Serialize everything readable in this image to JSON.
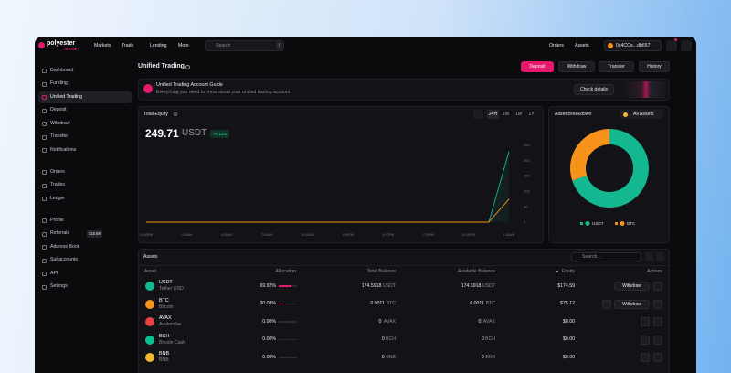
{
  "nav": {
    "brand": "polyester",
    "badge": "TESTNET",
    "links": [
      "Markets",
      "Trade",
      "Lending",
      "More"
    ],
    "search": "Search",
    "shortcut": "/",
    "right": [
      "Orders",
      "Assets"
    ],
    "wallet": "0x4CCe...db657"
  },
  "sidebar": {
    "groups": [
      [
        "Dashboard",
        "Funding",
        "Unified Trading",
        "Deposit",
        "Withdraw",
        "Transfer",
        "Notifications"
      ],
      [
        "Orders",
        "Trades",
        "Ledger"
      ],
      [
        "Profile",
        "Referrals",
        "Address Book",
        "Subaccounts",
        "API",
        "Settings"
      ]
    ],
    "referral_badge": "$15.6K"
  },
  "header": {
    "title": "Unified Trading",
    "buttons": [
      "Deposit",
      "Withdraw",
      "Transfer",
      "History"
    ]
  },
  "banner": {
    "title": "Unified Trading Account Guide",
    "text": "Everything you need to know about your unified trading account",
    "button": "Check details"
  },
  "equity": {
    "title": "Total Equity",
    "value": "249.71",
    "unit": "USDT",
    "change": "+0.11%",
    "ranges": [
      "24H",
      "1W",
      "1M",
      "1Y"
    ],
    "chart": {
      "type": "line",
      "categories": [
        "10:00PM",
        null,
        "1:00AM",
        null,
        "4:00AM",
        null,
        "7:00AM",
        null,
        "10:00AM",
        null,
        "1:00PM",
        null,
        "4:00PM",
        null,
        "7:00PM",
        null,
        "10:00PM",
        null,
        "1:00AM"
      ],
      "series": [
        {
          "color": "#14b890",
          "values": [
            0,
            0,
            0,
            0,
            0,
            0,
            0,
            0,
            0,
            0,
            0,
            0,
            0,
            0,
            0,
            0,
            0,
            0,
            230
          ]
        },
        {
          "color": "#f7931a",
          "values": [
            0,
            0,
            0,
            0,
            0,
            0,
            0,
            0,
            0,
            0,
            0,
            0,
            0,
            0,
            0,
            0,
            0,
            0,
            75
          ]
        }
      ],
      "ylim": [
        0,
        250
      ],
      "yticks": [
        0,
        50,
        100,
        150,
        200,
        250
      ],
      "grid": false
    }
  },
  "breakdown": {
    "title": "Asset Breakdown",
    "filter": "All Assets",
    "type": "donut"
  },
  "assets": {
    "title": "Assets",
    "search": "Search...",
    "columns": [
      "Asset",
      "Allocation",
      "Total Balance",
      "Available Balance",
      "Equity",
      "Actions"
    ],
    "rows": [
      {
        "symbol": "USDT",
        "name": "Tether USD",
        "color": "#14b890",
        "allocation": 69.92,
        "allocation_label": "69.92%",
        "total": "174.5918",
        "available": "174.5918",
        "equity": "$174.59",
        "action": "Withdraw"
      },
      {
        "symbol": "BTC",
        "name": "Bitcoin",
        "color": "#f7931a",
        "allocation": 30.08,
        "allocation_label": "30.08%",
        "total": "0.0011",
        "available": "0.0011",
        "equity": "$75.12",
        "action": "Withdraw"
      },
      {
        "symbol": "AVAX",
        "name": "Avalanche",
        "color": "#e84142",
        "allocation": 0,
        "allocation_label": "0.00%",
        "total": "0",
        "available": "0",
        "equity": "$0.00"
      },
      {
        "symbol": "BCH",
        "name": "Bitcoin Cash",
        "color": "#0ac18e",
        "allocation": 0,
        "allocation_label": "0.00%",
        "total": "0",
        "available": "0",
        "equity": "$0.00"
      },
      {
        "symbol": "BNB",
        "name": "BNB",
        "color": "#f3ba2f",
        "allocation": 0,
        "allocation_label": "0.00%",
        "total": "0",
        "available": "0",
        "equity": "$0.00"
      }
    ]
  }
}
